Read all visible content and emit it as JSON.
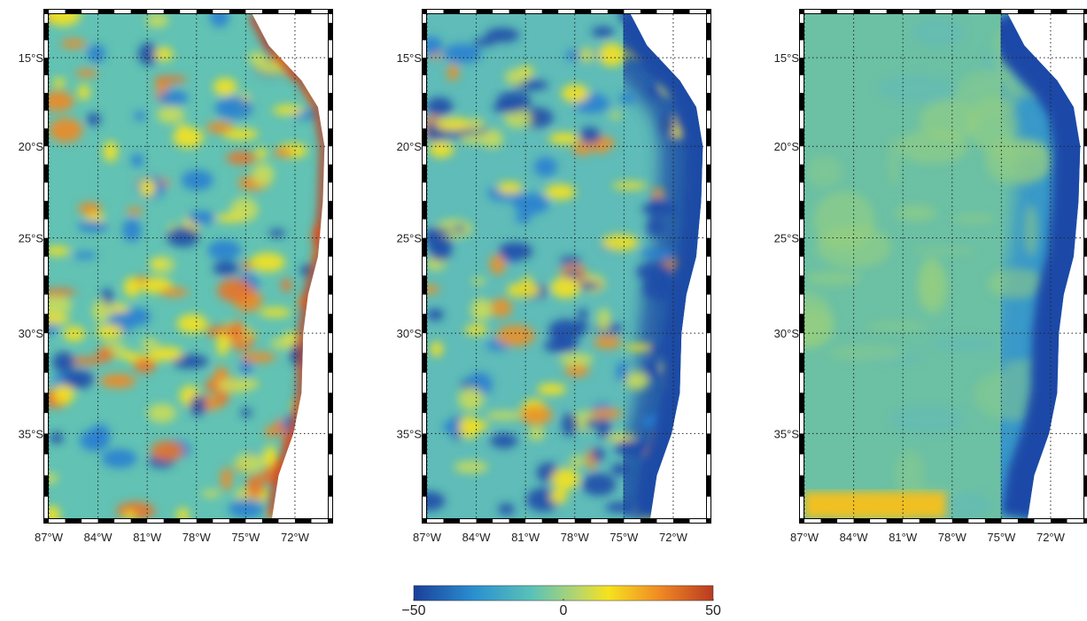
{
  "map": {
    "xlim": [
      -87,
      -70
    ],
    "ylim": [
      -39,
      -12.5
    ],
    "lon_ticks": [
      {
        "value": -87,
        "label": "87°W"
      },
      {
        "value": -84,
        "label": "84°W"
      },
      {
        "value": -81,
        "label": "81°W"
      },
      {
        "value": -78,
        "label": "78°W"
      },
      {
        "value": -75,
        "label": "75°W"
      },
      {
        "value": -72,
        "label": "72°W"
      }
    ],
    "lat_ticks": [
      {
        "value": -15,
        "label": "15°S"
      },
      {
        "value": -20,
        "label": "20°S"
      },
      {
        "value": -25,
        "label": "25°S"
      },
      {
        "value": -30,
        "label": "30°S"
      },
      {
        "value": -35,
        "label": "35°S"
      }
    ]
  },
  "colorbar": {
    "lim": [
      -50,
      50
    ],
    "ticks": [
      {
        "value": -50,
        "label": "−50"
      },
      0,
      50
    ]
  }
}
